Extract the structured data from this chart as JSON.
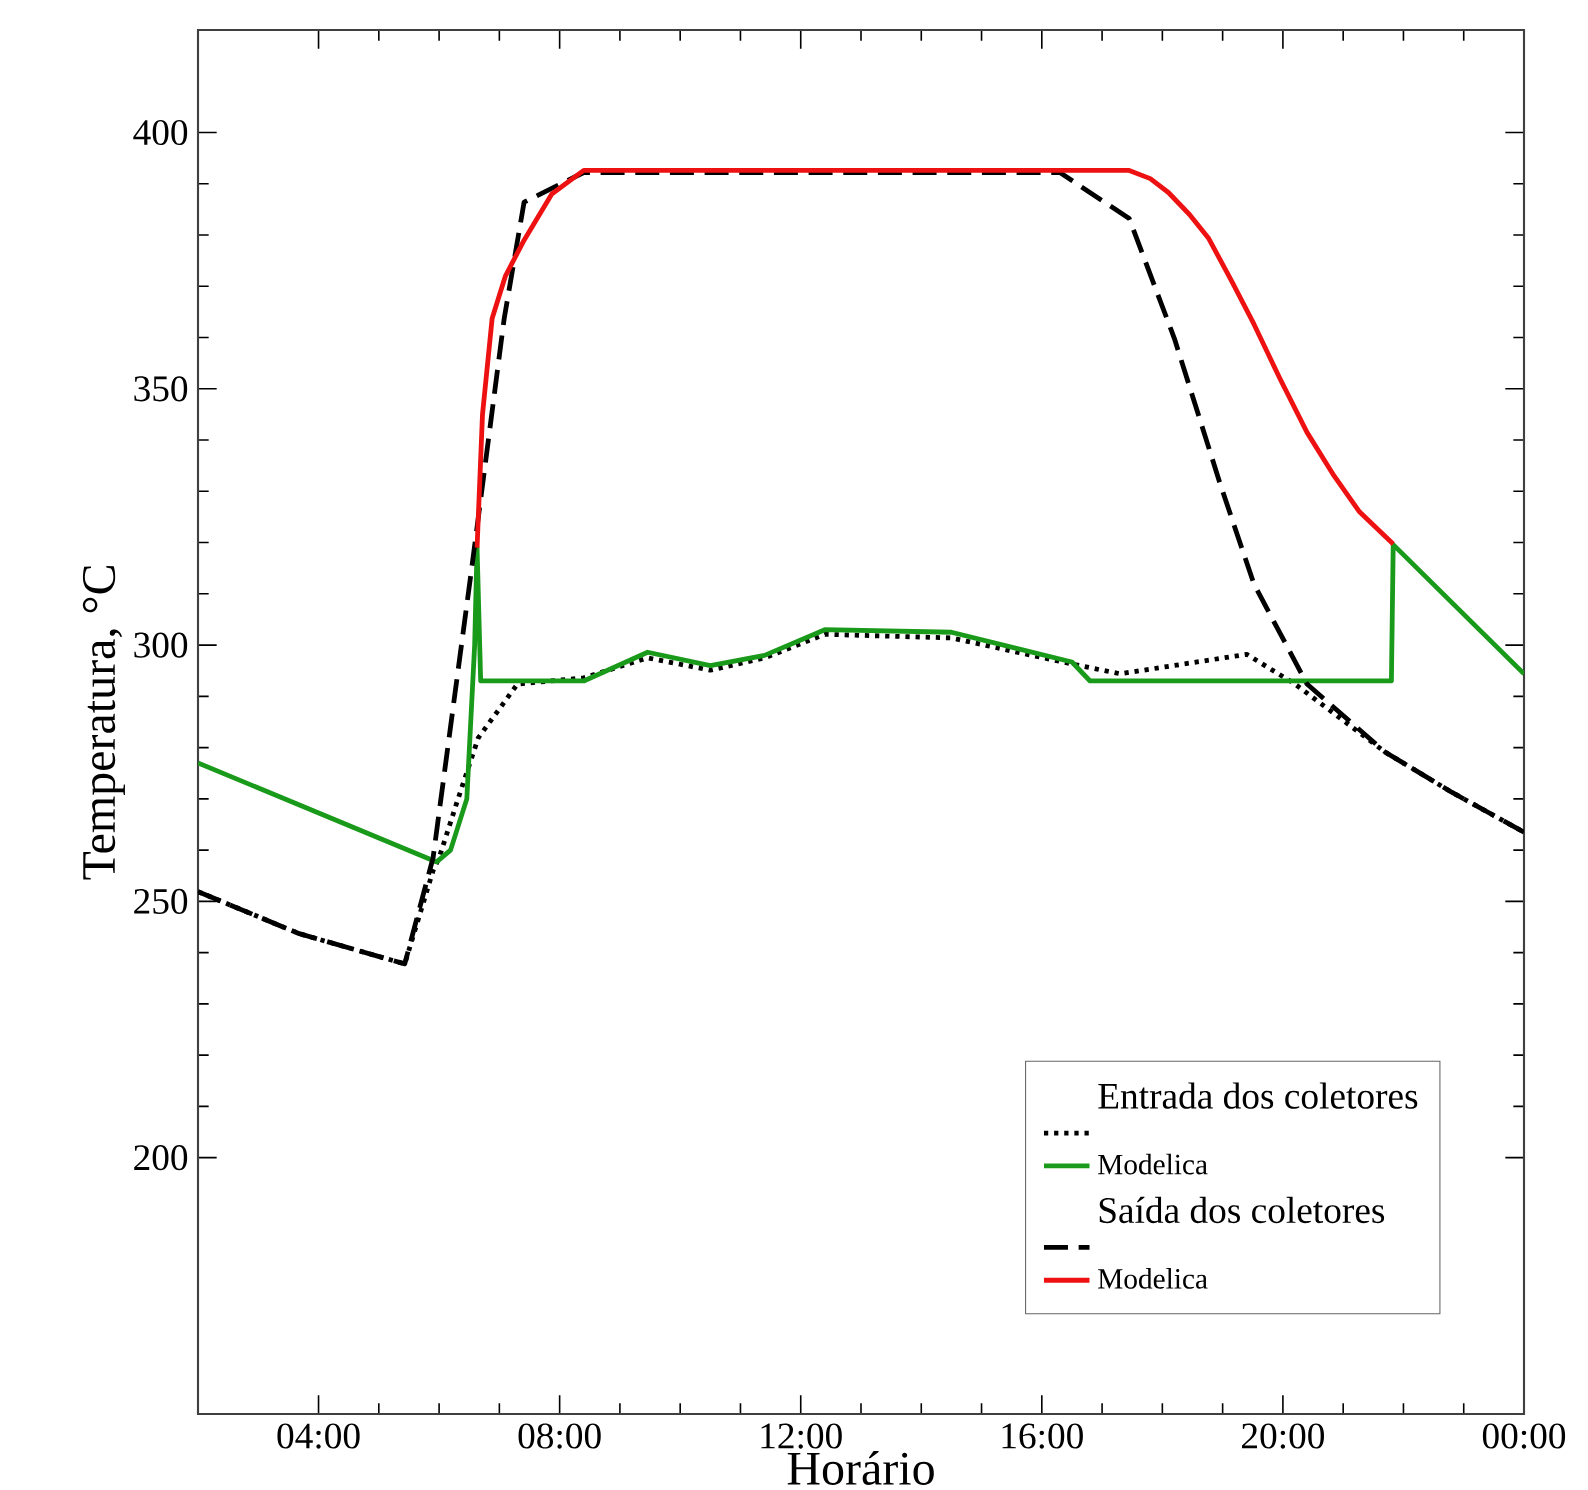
{
  "chart_data": {
    "type": "line",
    "xlabel": "Horário",
    "ylabel": "Temperatura, °C",
    "xlim": [
      2,
      24
    ],
    "ylim": [
      150,
      420
    ],
    "xticks": [
      {
        "value": 4,
        "label": "04:00"
      },
      {
        "value": 8,
        "label": "08:00"
      },
      {
        "value": 12,
        "label": "12:00"
      },
      {
        "value": 16,
        "label": "16:00"
      },
      {
        "value": 20,
        "label": "20:00"
      },
      {
        "value": 24,
        "label": "00:00"
      }
    ],
    "yticks": [
      200,
      250,
      300,
      350,
      400
    ],
    "grid": false,
    "legend": "bottom right",
    "annotations": [
      "Entrada dos coletores",
      "Saída dos coletores"
    ],
    "series": [
      {
        "color": "#000000",
        "line_style": "dotted",
        "x": [
          2,
          3.68,
          5.43,
          5.9,
          6.0,
          6.32,
          6.65,
          7.3,
          8.4,
          9.46,
          10.5,
          11.4,
          12.4,
          14.5,
          16.5,
          17.3,
          19.4,
          20.2,
          21.7,
          22.8,
          24
        ],
        "values": [
          251.9,
          243.7,
          237.8,
          256,
          258.5,
          270.2,
          281.9,
          292.4,
          293.6,
          297.5,
          295.1,
          297.5,
          302.1,
          301.4,
          296.3,
          294.4,
          298.2,
          292.4,
          279.1,
          271.3,
          263.5
        ]
      },
      {
        "name": "Modelica",
        "color": "#1a9a1a",
        "line_style": "solid",
        "x": [
          2,
          5.96,
          6.19,
          6.46,
          6.59,
          6.63,
          6.69,
          8.4,
          9.46,
          10.5,
          11.4,
          12.4,
          14.5,
          16.5,
          16.8,
          21.8,
          21.83,
          24
        ],
        "values": [
          277,
          257.7,
          260,
          270,
          300,
          319,
          293,
          293,
          298.6,
          296,
          298,
          303,
          302.5,
          296.7,
          293,
          293,
          319.6,
          294.4
        ]
      },
      {
        "color": "#000000",
        "line_style": "dashed",
        "x": [
          2,
          3.68,
          5.43,
          5.9,
          6.55,
          7.08,
          7.41,
          8.4,
          16.3,
          17.45,
          18.2,
          18.96,
          19.52,
          20.4,
          21.7,
          22.8,
          24
        ],
        "values": [
          251.9,
          243.7,
          237.8,
          258.5,
          315.8,
          363.7,
          386.4,
          392.2,
          392.2,
          383.2,
          359.8,
          331.4,
          311.9,
          292.4,
          279.1,
          271.3,
          263.5
        ]
      },
      {
        "name": "Modelica",
        "color": "#ee1111",
        "line_style": "solid",
        "x": [
          6.63,
          6.72,
          6.88,
          7.1,
          7.41,
          7.87,
          8.4,
          17.45,
          17.8,
          18.1,
          18.45,
          18.77,
          19.15,
          19.52,
          19.95,
          20.4,
          20.85,
          21.27,
          21.83
        ],
        "values": [
          319,
          345,
          363.7,
          372,
          379,
          388,
          392.6,
          392.6,
          391,
          388.3,
          384,
          379.3,
          371,
          362.6,
          352,
          341.5,
          333,
          326,
          319.7
        ]
      }
    ]
  }
}
